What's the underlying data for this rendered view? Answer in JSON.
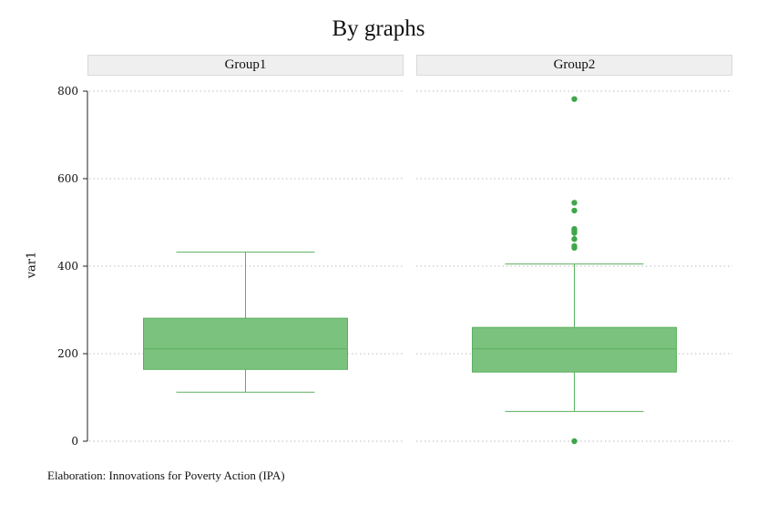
{
  "chart_data": {
    "type": "box",
    "title": "By graphs",
    "ylabel": "var1",
    "xlabel": "",
    "ylim": [
      0,
      800
    ],
    "yticks": [
      0,
      200,
      400,
      600,
      800
    ],
    "grid": "horizontal-dotted",
    "caption": "Elaboration: Innovations for Poverty Action (IPA)",
    "colors": {
      "fill": "#7bc27f",
      "line": "#5ab05f",
      "outlier": "#3fa64a"
    },
    "facets": [
      {
        "label": "Group1",
        "whisker_low": 112,
        "q1": 164,
        "median": 211,
        "q3": 281,
        "whisker_high": 432,
        "outliers": []
      },
      {
        "label": "Group2",
        "whisker_low": 68,
        "q1": 158,
        "median": 211,
        "q3": 260,
        "whisker_high": 405,
        "outliers": [
          0,
          442,
          446,
          462,
          476,
          481,
          485,
          527,
          545,
          782
        ]
      }
    ]
  }
}
